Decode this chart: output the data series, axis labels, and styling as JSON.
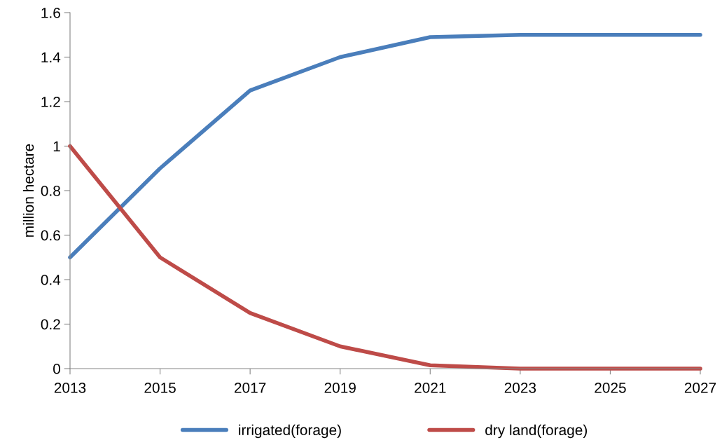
{
  "chart_data": {
    "type": "line",
    "ylabel": "million hectare",
    "x": [
      2013,
      2015,
      2017,
      2019,
      2021,
      2023,
      2025,
      2027
    ],
    "series": [
      {
        "name": "irrigated(forage)",
        "color": "#4a7ebb",
        "values": [
          0.5,
          0.9,
          1.25,
          1.4,
          1.49,
          1.5,
          1.5,
          1.5
        ]
      },
      {
        "name": "dry land(forage)",
        "color": "#be4b48",
        "values": [
          1.0,
          0.5,
          0.25,
          0.1,
          0.015,
          0,
          0,
          0
        ]
      }
    ],
    "xlim": [
      2013,
      2027
    ],
    "xticks": [
      2013,
      2015,
      2017,
      2019,
      2021,
      2023,
      2025,
      2027
    ],
    "ylim": [
      0,
      1.6
    ],
    "yticks": [
      0,
      0.2,
      0.4,
      0.6,
      0.8,
      1,
      1.2,
      1.4,
      1.6
    ],
    "grid": false,
    "legend": "bottom",
    "marker": "none",
    "line_style": "solid"
  }
}
